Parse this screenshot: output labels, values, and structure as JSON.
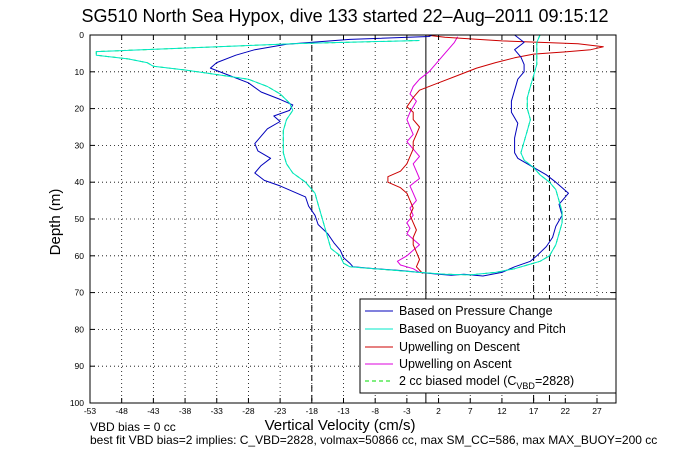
{
  "chart_data": {
    "type": "line",
    "title": "SG510 North Sea Hypox, dive 133 started 22–Aug–2011 09:15:12",
    "xlabel": "Vertical Velocity (cm/s)",
    "ylabel": "Depth (m)",
    "xlim": [
      -53,
      30
    ],
    "ylim": [
      100,
      0
    ],
    "y_reversed": true,
    "grid": true,
    "xticks": [
      -53,
      -48,
      -43,
      -38,
      -33,
      -28,
      -23,
      -18,
      -13,
      -8,
      -3,
      2,
      7,
      12,
      17,
      22,
      27
    ],
    "yticks": [
      0,
      10,
      20,
      30,
      40,
      50,
      60,
      70,
      80,
      90,
      100
    ],
    "legend": {
      "location": "bottom-right",
      "entries": [
        "Based on Pressure Change",
        "Based on Buoyancy and Pitch",
        "Upwelling on Descent",
        "Upwelling on Ascent",
        "2 cc biased model (C",
        "VBD",
        "=2828)"
      ]
    },
    "reference_lines": {
      "solid_x": 0,
      "dashed_x": [
        -18,
        17,
        19.5
      ]
    },
    "series": [
      {
        "name": "Based on Pressure Change",
        "color": "#0000bb",
        "points": [
          [
            1,
            0
          ],
          [
            0.5,
            0.4
          ],
          [
            -12,
            1.2
          ],
          [
            -22,
            2.5
          ],
          [
            -27,
            4
          ],
          [
            -30,
            5.5
          ],
          [
            -33,
            7.5
          ],
          [
            -34,
            9
          ],
          [
            -31,
            11
          ],
          [
            -28,
            13
          ],
          [
            -26,
            15.5
          ],
          [
            -23,
            17.5
          ],
          [
            -21,
            19
          ],
          [
            -21.5,
            20.5
          ],
          [
            -24,
            22
          ],
          [
            -23,
            23.5
          ],
          [
            -25,
            25.5
          ],
          [
            -26,
            27.5
          ],
          [
            -27,
            29.5
          ],
          [
            -26.5,
            31.5
          ],
          [
            -24.5,
            33.5
          ],
          [
            -26,
            35.5
          ],
          [
            -27,
            37.5
          ],
          [
            -25.5,
            39.5
          ],
          [
            -23,
            41
          ],
          [
            -21,
            42.5
          ],
          [
            -19,
            44
          ],
          [
            -18.5,
            46.5
          ],
          [
            -17.5,
            49
          ],
          [
            -17,
            51.5
          ],
          [
            -15.5,
            54
          ],
          [
            -14.5,
            56.5
          ],
          [
            -13.5,
            58.5
          ],
          [
            -13,
            60.5
          ],
          [
            -12,
            62
          ],
          [
            -11.5,
            63
          ],
          [
            -8,
            63.5
          ],
          [
            -4,
            64
          ],
          [
            -1,
            64.5
          ],
          [
            2,
            65
          ],
          [
            4,
            65.3
          ],
          [
            6,
            65
          ],
          [
            9,
            65.5
          ],
          [
            12,
            64.5
          ],
          [
            14,
            63
          ],
          [
            16.5,
            61.5
          ],
          [
            17.5,
            60
          ],
          [
            19,
            57.5
          ],
          [
            20,
            55
          ],
          [
            20.5,
            52
          ],
          [
            21.5,
            49
          ],
          [
            21,
            46
          ],
          [
            22.5,
            43
          ],
          [
            20.5,
            40
          ],
          [
            19,
            38
          ],
          [
            17.5,
            36.5
          ],
          [
            16,
            35
          ],
          [
            14.5,
            33.5
          ],
          [
            14,
            32
          ],
          [
            14,
            28
          ],
          [
            14.5,
            24
          ],
          [
            13.5,
            21
          ],
          [
            13.5,
            18
          ],
          [
            14,
            15
          ],
          [
            14.5,
            12
          ],
          [
            15.5,
            10
          ],
          [
            15.5,
            8
          ],
          [
            15,
            6
          ],
          [
            14,
            4
          ],
          [
            15.5,
            2
          ],
          [
            14,
            0
          ]
        ]
      },
      {
        "name": "Based on Buoyancy and Pitch",
        "color": "#00e8c8",
        "points": [
          [
            -1,
            1.5
          ],
          [
            -20,
            2.3
          ],
          [
            -52,
            4.5
          ],
          [
            -52,
            5.5
          ],
          [
            -47,
            6.5
          ],
          [
            -44,
            7.5
          ],
          [
            -43,
            8.5
          ],
          [
            -38,
            9.5
          ],
          [
            -34,
            10.5
          ],
          [
            -28,
            12
          ],
          [
            -25,
            14
          ],
          [
            -23,
            16
          ],
          [
            -21.5,
            18.5
          ],
          [
            -21,
            20.5
          ],
          [
            -22,
            23
          ],
          [
            -22.5,
            26
          ],
          [
            -22.5,
            29
          ],
          [
            -22.5,
            32
          ],
          [
            -22,
            35
          ],
          [
            -21,
            37.5
          ],
          [
            -19,
            40
          ],
          [
            -17.5,
            43
          ],
          [
            -17,
            46
          ],
          [
            -16.5,
            49
          ],
          [
            -16,
            52
          ],
          [
            -15.5,
            55
          ],
          [
            -15,
            58
          ],
          [
            -13.5,
            60
          ],
          [
            -13,
            62
          ],
          [
            -12,
            63
          ],
          [
            -6,
            63.8
          ],
          [
            -1,
            64.5
          ],
          [
            3,
            65
          ],
          [
            7,
            65.2
          ],
          [
            11,
            64.5
          ],
          [
            14,
            63.5
          ],
          [
            16,
            62.5
          ],
          [
            18,
            61.5
          ],
          [
            19.5,
            60
          ],
          [
            20.5,
            57
          ],
          [
            21,
            54
          ],
          [
            21.5,
            51
          ],
          [
            21.5,
            48
          ],
          [
            21,
            45
          ],
          [
            20.5,
            42
          ],
          [
            19.5,
            40
          ],
          [
            18,
            38
          ],
          [
            17,
            36
          ],
          [
            15.5,
            34
          ],
          [
            15,
            32
          ],
          [
            15.5,
            29
          ],
          [
            16,
            26
          ],
          [
            16.5,
            23
          ],
          [
            16,
            20
          ],
          [
            16,
            17
          ],
          [
            16.5,
            14
          ],
          [
            17,
            11
          ],
          [
            17.5,
            8
          ],
          [
            17.5,
            5
          ],
          [
            17.5,
            2
          ],
          [
            18,
            0
          ]
        ]
      },
      {
        "name": "Upwelling on Descent",
        "color": "#cc0000",
        "points": [
          [
            0,
            0
          ],
          [
            3,
            0.6
          ],
          [
            12,
            1.6
          ],
          [
            24,
            2.4
          ],
          [
            28,
            3.2
          ],
          [
            26,
            4
          ],
          [
            22,
            4.6
          ],
          [
            17,
            5.2
          ],
          [
            14,
            6.2
          ],
          [
            11,
            7.5
          ],
          [
            8,
            9
          ],
          [
            5,
            11
          ],
          [
            2,
            13
          ],
          [
            -1,
            15
          ],
          [
            -2,
            17
          ],
          [
            -3,
            19.5
          ],
          [
            -2,
            21
          ],
          [
            -2,
            23
          ],
          [
            -1,
            25
          ],
          [
            -1.5,
            27
          ],
          [
            -2,
            29
          ],
          [
            -2,
            31
          ],
          [
            -2.5,
            33
          ],
          [
            -3,
            35
          ],
          [
            -4,
            37
          ],
          [
            -6,
            38.5
          ],
          [
            -6,
            40
          ],
          [
            -4,
            41.5
          ],
          [
            -3,
            43
          ],
          [
            -2.5,
            45
          ],
          [
            -2,
            47
          ],
          [
            -2.5,
            49
          ],
          [
            -2,
            51
          ],
          [
            -1.5,
            53
          ],
          [
            -2,
            55
          ],
          [
            -2,
            57
          ],
          [
            -1.5,
            59
          ],
          [
            -1,
            61
          ],
          [
            -1.5,
            63
          ],
          [
            -0.5,
            64.8
          ]
        ]
      },
      {
        "name": "Upwelling on Ascent",
        "color": "#dd00dd",
        "points": [
          [
            -1,
            64.5
          ],
          [
            -2,
            63.5
          ],
          [
            -4,
            62.5
          ],
          [
            -4.5,
            61.5
          ],
          [
            -3,
            60
          ],
          [
            -2,
            58.5
          ],
          [
            -1,
            57
          ],
          [
            -2,
            55.5
          ],
          [
            -3,
            54
          ],
          [
            -2.5,
            52.5
          ],
          [
            -3,
            51
          ],
          [
            -2,
            49
          ],
          [
            -2.5,
            47
          ],
          [
            -1.5,
            45
          ],
          [
            -2,
            43
          ],
          [
            -2.5,
            41
          ],
          [
            -1,
            39
          ],
          [
            -1.5,
            37
          ],
          [
            -2,
            35
          ],
          [
            -1,
            33
          ],
          [
            -2,
            31
          ],
          [
            -3,
            29
          ],
          [
            -2,
            27
          ],
          [
            -2.5,
            25
          ],
          [
            -3,
            23
          ],
          [
            -2.5,
            21
          ],
          [
            -2,
            19.5
          ],
          [
            -1.5,
            18
          ],
          [
            -2.5,
            16
          ],
          [
            -2,
            14
          ],
          [
            -1,
            12
          ],
          [
            0.5,
            10
          ],
          [
            1.5,
            8
          ],
          [
            2.5,
            6
          ],
          [
            3.5,
            4
          ],
          [
            4.5,
            2
          ],
          [
            5,
            0.5
          ]
        ]
      },
      {
        "name": "2 cc biased model (CVBD=2828)",
        "color": "#00dd00",
        "dashed": true,
        "points": [
          [
            -1,
            1.5
          ],
          [
            -20,
            2.3
          ],
          [
            -52,
            4.5
          ],
          [
            -52,
            5.5
          ],
          [
            -47,
            6.5
          ],
          [
            -44,
            7.5
          ],
          [
            -43,
            8.5
          ],
          [
            -38,
            9.5
          ],
          [
            -34,
            10.5
          ],
          [
            -28,
            12
          ],
          [
            -25,
            14
          ],
          [
            -23,
            16
          ],
          [
            -21.5,
            18.5
          ],
          [
            -21,
            20.5
          ],
          [
            -22,
            23
          ],
          [
            -22.5,
            26
          ],
          [
            -22.5,
            29
          ],
          [
            -22.5,
            32
          ],
          [
            -22,
            35
          ],
          [
            -21,
            37.5
          ],
          [
            -19,
            40
          ],
          [
            -17.5,
            43
          ],
          [
            -17,
            46
          ],
          [
            -16.5,
            49
          ],
          [
            -16,
            52
          ],
          [
            -15.5,
            55
          ],
          [
            -15,
            58
          ],
          [
            -13.5,
            60
          ],
          [
            -13,
            62
          ],
          [
            -12,
            63
          ],
          [
            -6,
            63.8
          ],
          [
            -1,
            64.5
          ],
          [
            3,
            65
          ],
          [
            7,
            65.2
          ],
          [
            11,
            64.5
          ],
          [
            14,
            63.5
          ],
          [
            16,
            62.5
          ],
          [
            18,
            61.5
          ],
          [
            19.5,
            60
          ],
          [
            20.5,
            57
          ],
          [
            21,
            54
          ],
          [
            21.5,
            51
          ],
          [
            21.5,
            48
          ],
          [
            21,
            45
          ],
          [
            20.5,
            42
          ],
          [
            19.5,
            40
          ],
          [
            18,
            38
          ],
          [
            17,
            36
          ],
          [
            15.5,
            34
          ],
          [
            15,
            32
          ],
          [
            15.5,
            29
          ],
          [
            16,
            26
          ],
          [
            16.5,
            23
          ],
          [
            16,
            20
          ],
          [
            16,
            17
          ],
          [
            16.5,
            14
          ],
          [
            17,
            11
          ],
          [
            17.5,
            8
          ],
          [
            17.5,
            5
          ],
          [
            17.5,
            2
          ],
          [
            18,
            0
          ]
        ]
      }
    ],
    "annotations": [
      "VBD bias = 0 cc",
      "best fit VBD bias=2 implies: C_VBD=2828, volmax=50866 cc, max SM_CC=586, max MAX_BUOY=200 cc"
    ]
  }
}
